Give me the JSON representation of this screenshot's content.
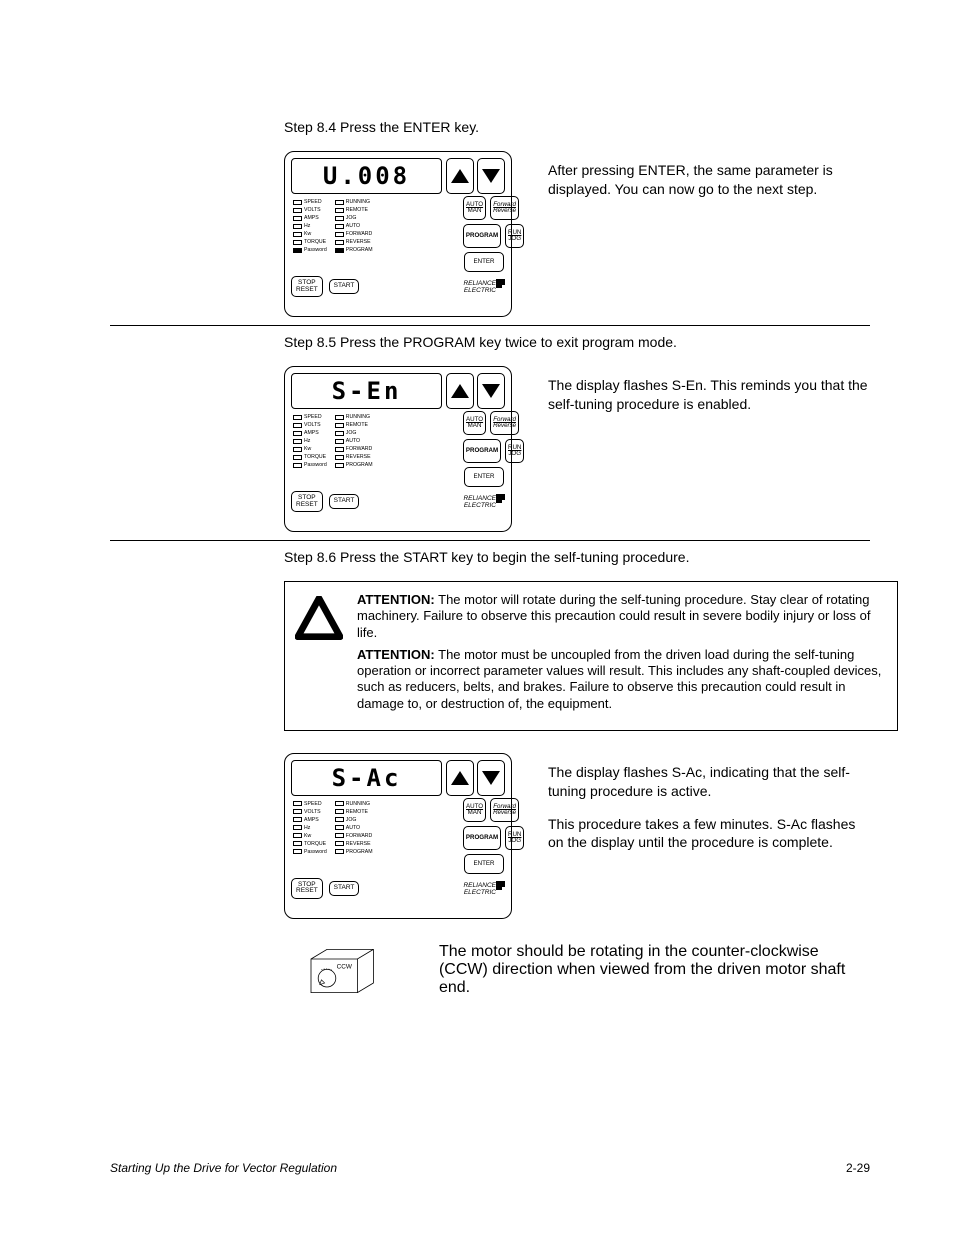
{
  "steps": {
    "s84": {
      "header": "Step 8.4 Press the ENTER key.",
      "display": "U.008",
      "desc": "After pressing ENTER, the same parameter is displayed. You can now go to the next step.",
      "program_led_on": true,
      "password_led_on": true
    },
    "s85": {
      "header": "Step 8.5 Press the PROGRAM key twice to exit program mode.",
      "display": "S-En",
      "desc": "The display flashes S-En. This reminds you that the self-tuning procedure is enabled.",
      "program_led_on": false,
      "password_led_on": false
    },
    "s86": {
      "header": "Step 8.6 Press the START key to begin the self-tuning procedure.",
      "display": "S-Ac",
      "desc1": "The display flashes S-Ac, indicating that the self-tuning procedure is active.",
      "desc2": "This procedure takes a few minutes. S-Ac flashes on the display until the procedure is complete.",
      "program_led_on": false,
      "password_led_on": false
    }
  },
  "attention": {
    "p1_bold": "ATTENTION:",
    "p1": " The motor will rotate during the self-tuning procedure. Stay clear of rotating machinery. Failure to observe this precaution could result in severe bodily injury or loss of life.",
    "p2_bold": "ATTENTION:",
    "p2": " The motor must be uncoupled from the driven load during the self-tuning operation or incorrect parameter values will result. This includes any shaft-coupled devices, such as reducers, belts, and brakes. Failure to observe this precaution could result in damage to, or destruction of, the equipment."
  },
  "ccw": {
    "label": "CCW",
    "desc": "The motor should be rotating in the counter-clockwise (CCW) direction when viewed from the driven motor shaft end."
  },
  "panel": {
    "leds_left": [
      "SPEED",
      "VOLTS",
      "AMPS",
      "Hz",
      "Kw",
      "TORQUE",
      "Password"
    ],
    "leds_right": [
      "RUNNING",
      "REMOTE",
      "JOG",
      "AUTO",
      "FORWARD",
      "REVERSE",
      "PROGRAM"
    ],
    "btn_auto_top": "AUTO",
    "btn_auto_bot": "MAN",
    "btn_fwd_top": "Forward",
    "btn_fwd_bot": "Reverse",
    "btn_program": "PROGRAM",
    "btn_run_top": "RUN",
    "btn_run_bot": "JOG",
    "btn_enter": "ENTER",
    "btn_stop_top": "STOP",
    "btn_stop_bot": "RESET",
    "btn_start": "START",
    "brand_top": "RELIANCE",
    "brand_bot": "ELECTRIC"
  },
  "footer": {
    "title": "Starting Up the Drive for Vector Regulation",
    "page": "2-29"
  },
  "colors": {
    "text": "#000000",
    "background": "#ffffff"
  }
}
